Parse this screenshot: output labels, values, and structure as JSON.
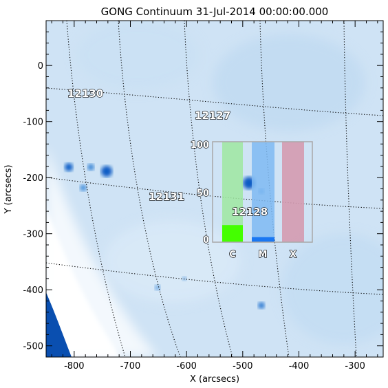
{
  "title": "GONG Continuum 31-Jul-2014 00:00:00.000",
  "axes": {
    "xlabel": "X (arcsecs)",
    "ylabel": "Y (arcsecs)",
    "xlim": [
      -850,
      -250
    ],
    "ylim": [
      -520,
      80
    ],
    "x_major_ticks": [
      -800,
      -700,
      -600,
      -500,
      -400,
      -300
    ],
    "y_major_ticks": [
      0,
      -100,
      -200,
      -300,
      -400,
      -500
    ],
    "x_minor_step": 20,
    "y_minor_step": 20
  },
  "colors": {
    "disk_background": "#cfe3f5",
    "sunspot": "#1060c8",
    "off_disk": "#0a4fb0",
    "grid": "#000000"
  },
  "active_regions": [
    {
      "label": "12130",
      "x": -785,
      "y": -50
    },
    {
      "label": "12127",
      "x": -565,
      "y": -95
    },
    {
      "label": "12131",
      "x": -640,
      "y": -240
    },
    {
      "label": "12128",
      "x": -485,
      "y": -270
    }
  ],
  "flare_probability_inset": {
    "ymax": 100,
    "y_tick_labels": [
      "100",
      "50",
      "0"
    ],
    "categories": [
      "C",
      "M",
      "X"
    ],
    "values": [
      17,
      5,
      0
    ],
    "colors": {
      "C": "#44ff00",
      "M": "#1a77f2",
      "X": "#c8506e"
    },
    "background_alpha_colors": {
      "C": "#9fe8a0",
      "M": "#7fbaf2",
      "X": "#d49ab0"
    }
  }
}
